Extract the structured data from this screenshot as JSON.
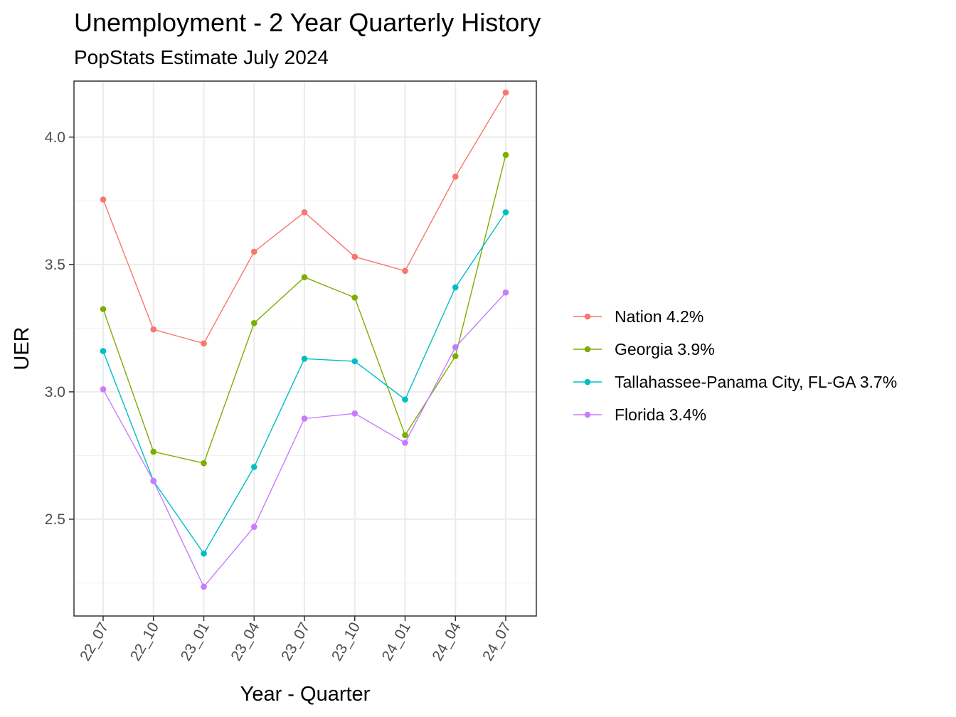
{
  "chart_data": {
    "type": "line",
    "title": "Unemployment - 2 Year Quarterly History",
    "subtitle": "PopStats Estimate July 2024",
    "xlabel": "Year - Quarter",
    "ylabel": "UER",
    "categories": [
      "22_07",
      "22_10",
      "23_01",
      "23_04",
      "23_07",
      "23_10",
      "24_01",
      "24_04",
      "24_07"
    ],
    "ylim": [
      2.12,
      4.22
    ],
    "yticks": [
      2.5,
      3.0,
      3.5,
      4.0
    ],
    "ytick_labels": [
      "2.5",
      "3.0",
      "3.5",
      "4.0"
    ],
    "grid": true,
    "legend_position": "right",
    "series": [
      {
        "name": "Nation 4.2%",
        "color": "#F8766D",
        "values": [
          3.755,
          3.245,
          3.19,
          3.55,
          3.705,
          3.53,
          3.475,
          3.845,
          4.175
        ]
      },
      {
        "name": "Georgia 3.9%",
        "color": "#7CAE00",
        "values": [
          3.325,
          2.765,
          2.72,
          3.27,
          3.45,
          3.37,
          2.83,
          3.14,
          3.93
        ]
      },
      {
        "name": "Tallahassee-Panama City, FL-GA 3.7%",
        "color": "#00BFC4",
        "values": [
          3.16,
          2.65,
          2.365,
          2.705,
          3.13,
          3.12,
          2.97,
          3.41,
          3.705
        ]
      },
      {
        "name": "Florida 3.4%",
        "color": "#C77CFF",
        "values": [
          3.01,
          2.65,
          2.235,
          2.47,
          2.895,
          2.915,
          2.8,
          3.175,
          3.39
        ]
      }
    ]
  }
}
